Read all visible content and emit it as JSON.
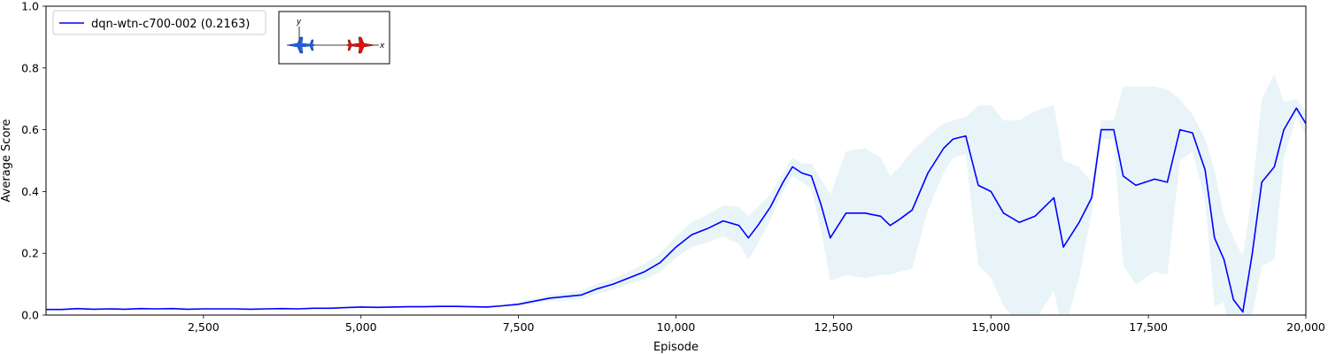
{
  "chart_data": {
    "type": "line",
    "xlabel": "Episode",
    "ylabel": "Average Score",
    "xlim": [
      0,
      20000
    ],
    "ylim": [
      0,
      1.0
    ],
    "x_ticks": [
      2500,
      5000,
      7500,
      10000,
      12500,
      15000,
      17500,
      20000
    ],
    "x_tick_labels": [
      "2,500",
      "5,000",
      "7,500",
      "10,000",
      "12,500",
      "15,000",
      "17,500",
      "20,000"
    ],
    "y_ticks": [
      0.0,
      0.2,
      0.4,
      0.6,
      0.8,
      1.0
    ],
    "y_tick_labels": [
      "0.0",
      "0.2",
      "0.4",
      "0.6",
      "0.8",
      "1.0"
    ],
    "grid": false,
    "legend_position": "top-left",
    "series": [
      {
        "name": "dqn-wtn-c700-002 (0.2163)",
        "legend_label": "dqn-wtn-c700-002 (0.2163)",
        "color": "#0000ff",
        "band_color": "#add8e6",
        "points": [
          [
            0,
            0.018
          ],
          [
            250,
            0.018
          ],
          [
            500,
            0.021
          ],
          [
            750,
            0.019
          ],
          [
            1000,
            0.02
          ],
          [
            1250,
            0.019
          ],
          [
            1500,
            0.021
          ],
          [
            1750,
            0.02
          ],
          [
            2000,
            0.021
          ],
          [
            2250,
            0.019
          ],
          [
            2500,
            0.02
          ],
          [
            2750,
            0.02
          ],
          [
            3000,
            0.02
          ],
          [
            3250,
            0.019
          ],
          [
            3500,
            0.02
          ],
          [
            3750,
            0.021
          ],
          [
            4000,
            0.02
          ],
          [
            4250,
            0.022
          ],
          [
            4500,
            0.022
          ],
          [
            4750,
            0.024
          ],
          [
            5000,
            0.026
          ],
          [
            5250,
            0.025
          ],
          [
            5500,
            0.026
          ],
          [
            5750,
            0.027
          ],
          [
            6000,
            0.027
          ],
          [
            6250,
            0.028
          ],
          [
            6500,
            0.028
          ],
          [
            6750,
            0.027
          ],
          [
            7000,
            0.026
          ],
          [
            7250,
            0.03
          ],
          [
            7500,
            0.035
          ],
          [
            7750,
            0.045
          ],
          [
            8000,
            0.055
          ],
          [
            8250,
            0.06
          ],
          [
            8500,
            0.065
          ],
          [
            8750,
            0.085
          ],
          [
            9000,
            0.1
          ],
          [
            9250,
            0.12
          ],
          [
            9500,
            0.14
          ],
          [
            9750,
            0.17
          ],
          [
            10000,
            0.22
          ],
          [
            10250,
            0.26
          ],
          [
            10500,
            0.28
          ],
          [
            10750,
            0.305
          ],
          [
            11000,
            0.29
          ],
          [
            11150,
            0.25
          ],
          [
            11300,
            0.29
          ],
          [
            11500,
            0.35
          ],
          [
            11700,
            0.43
          ],
          [
            11850,
            0.48
          ],
          [
            12000,
            0.46
          ],
          [
            12150,
            0.45
          ],
          [
            12300,
            0.36
          ],
          [
            12450,
            0.25
          ],
          [
            12700,
            0.33
          ],
          [
            13000,
            0.33
          ],
          [
            13250,
            0.32
          ],
          [
            13400,
            0.29
          ],
          [
            13550,
            0.31
          ],
          [
            13750,
            0.34
          ],
          [
            14000,
            0.46
          ],
          [
            14250,
            0.54
          ],
          [
            14400,
            0.57
          ],
          [
            14600,
            0.58
          ],
          [
            14800,
            0.42
          ],
          [
            15000,
            0.4
          ],
          [
            15200,
            0.33
          ],
          [
            15450,
            0.3
          ],
          [
            15700,
            0.32
          ],
          [
            16000,
            0.38
          ],
          [
            16150,
            0.22
          ],
          [
            16400,
            0.3
          ],
          [
            16600,
            0.38
          ],
          [
            16750,
            0.6
          ],
          [
            16950,
            0.6
          ],
          [
            17100,
            0.45
          ],
          [
            17300,
            0.42
          ],
          [
            17600,
            0.44
          ],
          [
            17800,
            0.43
          ],
          [
            18000,
            0.6
          ],
          [
            18200,
            0.59
          ],
          [
            18400,
            0.47
          ],
          [
            18550,
            0.25
          ],
          [
            18700,
            0.18
          ],
          [
            18850,
            0.05
          ],
          [
            19000,
            0.01
          ],
          [
            19150,
            0.2
          ],
          [
            19300,
            0.43
          ],
          [
            19500,
            0.48
          ],
          [
            19650,
            0.6
          ],
          [
            19850,
            0.67
          ],
          [
            20000,
            0.62
          ]
        ],
        "band_width": [
          0.002,
          0.002,
          0.002,
          0.002,
          0.002,
          0.002,
          0.002,
          0.002,
          0.002,
          0.002,
          0.002,
          0.002,
          0.002,
          0.002,
          0.002,
          0.002,
          0.002,
          0.002,
          0.002,
          0.002,
          0.003,
          0.003,
          0.003,
          0.003,
          0.003,
          0.003,
          0.003,
          0.003,
          0.003,
          0.004,
          0.006,
          0.008,
          0.01,
          0.012,
          0.014,
          0.016,
          0.018,
          0.02,
          0.025,
          0.03,
          0.035,
          0.04,
          0.045,
          0.05,
          0.06,
          0.07,
          0.06,
          0.04,
          0.03,
          0.03,
          0.03,
          0.04,
          0.08,
          0.14,
          0.2,
          0.21,
          0.19,
          0.16,
          0.17,
          0.19,
          0.12,
          0.08,
          0.06,
          0.06,
          0.26,
          0.28,
          0.3,
          0.33,
          0.34,
          0.3,
          0.28,
          0.18,
          0.05,
          0.03,
          0.03,
          0.29,
          0.32,
          0.3,
          0.3,
          0.1,
          0.06,
          0.1,
          0.22,
          0.14,
          0.2,
          0.18,
          0.2,
          0.27,
          0.3,
          0.09,
          0.03,
          0.04
        ]
      }
    ],
    "inset": {
      "x_axis_label": "x",
      "y_axis_label": "y",
      "left_aircraft_color": "#1f5fe0",
      "right_aircraft_color": "#e01010",
      "left_icon_name": "blue-jet-icon",
      "right_icon_name": "red-jet-icon"
    }
  }
}
